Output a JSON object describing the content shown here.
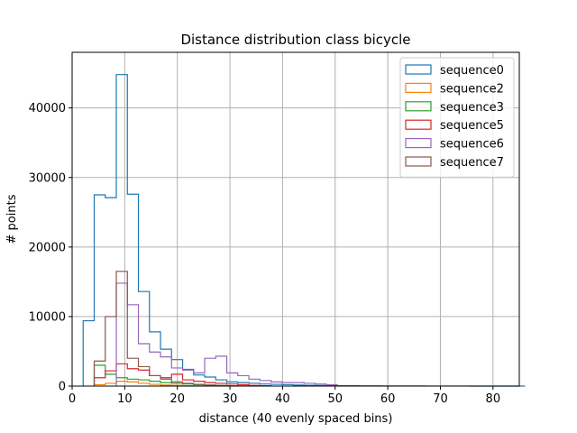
{
  "chart_data": {
    "type": "histogram",
    "title": "Distance distribution class bicycle",
    "xlabel": "distance (40 evenly spaced bins)",
    "ylabel": "# points",
    "xlim": [
      0,
      85
    ],
    "ylim": [
      0,
      48000
    ],
    "xticks": [
      0,
      10,
      20,
      30,
      40,
      50,
      60,
      70,
      80
    ],
    "yticks": [
      0,
      10000,
      20000,
      30000,
      40000
    ],
    "grid": true,
    "legend_position": "top-right",
    "series": [
      {
        "name": "sequence0",
        "color": "#1f77b4",
        "bin_edges": [
          2.1,
          4.2,
          6.3,
          8.4,
          10.5,
          12.6,
          14.7,
          16.8,
          18.9,
          21.0,
          23.1,
          25.2,
          27.3,
          29.4,
          31.5,
          33.6,
          35.7,
          37.8,
          39.9,
          42.0,
          44.1,
          46.2,
          48.3,
          50.4,
          52.5,
          54.6,
          56.7,
          58.8,
          60.9,
          63.0,
          65.1,
          67.2,
          69.3,
          71.4,
          73.5,
          75.6,
          77.7,
          79.8,
          81.9,
          84.0,
          86.1
        ],
        "counts": [
          9400,
          27500,
          27100,
          44800,
          27600,
          13600,
          7800,
          5300,
          3800,
          2400,
          1600,
          1300,
          900,
          600,
          500,
          400,
          300,
          250,
          200,
          150,
          120,
          100,
          80,
          60,
          50,
          40,
          30,
          25,
          20,
          15,
          12,
          10,
          8,
          6,
          5,
          4,
          3,
          2,
          1,
          0
        ]
      },
      {
        "name": "sequence2",
        "color": "#ff7f0e",
        "bin_edges": [
          4.2,
          6.3,
          8.4,
          10.5,
          12.6,
          14.7,
          16.8,
          18.9,
          21.0,
          23.1,
          25.2,
          27.3,
          29.4
        ],
        "counts": [
          200,
          400,
          700,
          600,
          400,
          250,
          150,
          100,
          60,
          40,
          20,
          10
        ]
      },
      {
        "name": "sequence3",
        "color": "#2ca02c",
        "bin_edges": [
          4.2,
          6.3,
          8.4,
          10.5,
          12.6,
          14.7,
          16.8,
          18.9,
          21.0,
          23.1,
          25.2,
          27.3,
          29.4,
          31.5,
          33.6,
          35.7
        ],
        "counts": [
          3000,
          1700,
          1200,
          1000,
          900,
          700,
          500,
          400,
          300,
          200,
          150,
          100,
          60,
          30,
          10
        ]
      },
      {
        "name": "sequence5",
        "color": "#d62728",
        "bin_edges": [
          4.2,
          6.3,
          8.4,
          10.5,
          12.6,
          14.7,
          16.8,
          18.9,
          21.0,
          23.1,
          25.2,
          27.3,
          29.4,
          31.5,
          33.6,
          35.7,
          37.8
        ],
        "counts": [
          1200,
          2200,
          3200,
          2500,
          2300,
          1500,
          1200,
          1700,
          900,
          700,
          500,
          400,
          300,
          200,
          100,
          50
        ]
      },
      {
        "name": "sequence6",
        "color": "#9467bd",
        "bin_edges": [
          8.4,
          10.5,
          12.6,
          14.7,
          16.8,
          18.9,
          21.0,
          23.1,
          25.2,
          27.3,
          29.4,
          31.5,
          33.6,
          35.7,
          37.8,
          39.9,
          42.0,
          44.1,
          46.2,
          48.3,
          50.4
        ],
        "counts": [
          14800,
          11700,
          6100,
          4900,
          4200,
          2600,
          2300,
          1900,
          4000,
          4300,
          1900,
          1500,
          1000,
          800,
          600,
          500,
          500,
          400,
          300,
          200
        ]
      },
      {
        "name": "sequence7",
        "color": "#8c564b",
        "bin_edges": [
          4.2,
          6.3,
          8.4,
          10.5,
          12.6,
          14.7,
          16.8,
          18.9,
          21.0,
          23.1,
          25.2,
          27.3,
          29.4,
          31.5
        ],
        "counts": [
          3600,
          10000,
          16500,
          4000,
          2800,
          1500,
          1000,
          600,
          400,
          250,
          150,
          80,
          30
        ]
      }
    ]
  }
}
